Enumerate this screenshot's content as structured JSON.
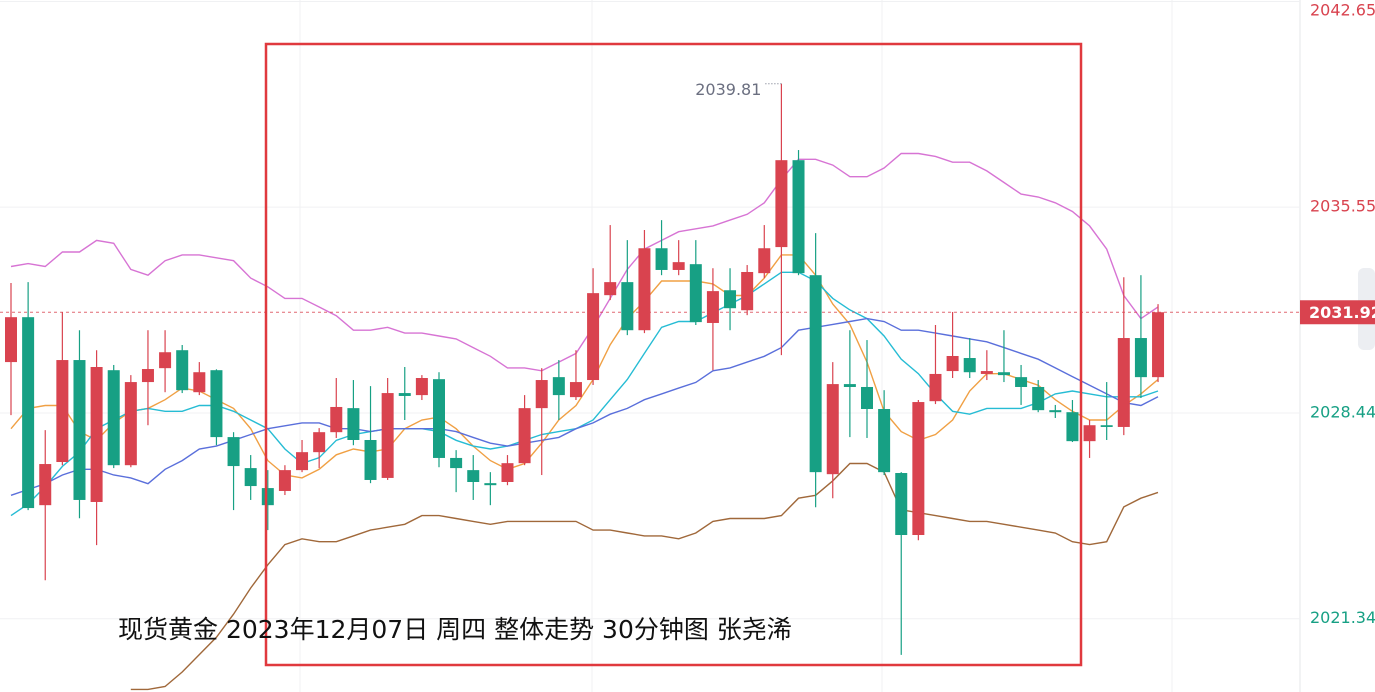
{
  "chart_data": {
    "type": "candlestick",
    "annotation": "现货黄金 2023年12月07日 周四 整体走势 30分钟图  张尧浠",
    "open": [
      2030.2,
      2031.75,
      2025.26,
      2026.75,
      2030.27,
      2025.37,
      2029.92,
      2026.64,
      2029.51,
      2029.99,
      2030.61,
      2029.16,
      2029.92,
      2027.61,
      2026.54,
      2025.85,
      2025.75,
      2026.47,
      2027.09,
      2027.78,
      2028.61,
      2027.51,
      2026.2,
      2029.13,
      2029.06,
      2029.61,
      2026.89,
      2026.47,
      2026.02,
      2026.06,
      2026.71,
      2028.61,
      2029.68,
      2028.99,
      2029.58,
      2032.51,
      2032.96,
      2031.3,
      2034.13,
      2033.38,
      2033.58,
      2031.55,
      2032.68,
      2031.99,
      2033.27,
      2034.17,
      2037.17,
      2033.2,
      2026.33,
      2029.44,
      2029.34,
      2028.58,
      2026.37,
      2024.23,
      2028.85,
      2029.89,
      2030.34,
      2029.79,
      2029.85,
      2029.68,
      2029.34,
      2028.54,
      2028.47,
      2027.47,
      2028.02,
      2027.96,
      2031.03,
      2029.68
    ],
    "high": [
      2032.93,
      2032.96,
      2027.85,
      2031.93,
      2031.3,
      2030.61,
      2030.1,
      2029.75,
      2031.3,
      2031.3,
      2030.79,
      2030.2,
      2029.95,
      2027.78,
      2026.99,
      2026.47,
      2026.64,
      2027.51,
      2027.92,
      2029.65,
      2029.58,
      2029.37,
      2029.65,
      2030.03,
      2029.75,
      2029.85,
      2027.16,
      2026.99,
      2026.4,
      2026.99,
      2029.06,
      2029.99,
      2030.27,
      2030.61,
      2033.44,
      2034.93,
      2034.41,
      2034.76,
      2035.1,
      2034.41,
      2034.41,
      2033.44,
      2033.44,
      2033.55,
      2034.93,
      2039.81,
      2037.52,
      2034.65,
      2030.2,
      2031.3,
      2030.96,
      2029.23,
      2026.4,
      2028.89,
      2031.48,
      2031.93,
      2031.03,
      2030.61,
      2031.3,
      2030.1,
      2029.58,
      2028.72,
      2028.89,
      2028.2,
      2029.51,
      2033.13,
      2033.2,
      2032.2
    ],
    "low": [
      2028.37,
      2025.09,
      2022.67,
      2026.64,
      2024.81,
      2023.88,
      2026.54,
      2026.57,
      2028.02,
      2029.16,
      2029.13,
      2029.06,
      2027.33,
      2025.09,
      2025.44,
      2024.4,
      2025.61,
      2026.4,
      2026.54,
      2027.58,
      2027.33,
      2026.02,
      2026.13,
      2028.2,
      2028.89,
      2026.57,
      2025.71,
      2025.44,
      2025.26,
      2025.95,
      2026.64,
      2026.3,
      2028.2,
      2028.89,
      2029.41,
      2032.34,
      2031.13,
      2031.2,
      2033.2,
      2033.2,
      2031.48,
      2029.92,
      2031.3,
      2031.82,
      2033.1,
      2030.44,
      2033.2,
      2025.19,
      2025.5,
      2027.61,
      2027.58,
      2026.3,
      2020.09,
      2024.05,
      2028.75,
      2029.65,
      2029.65,
      2029.58,
      2029.51,
      2028.72,
      2028.47,
      2028.27,
      2027.44,
      2026.89,
      2027.51,
      2027.68,
      2028.96,
      2029.51
    ],
    "close": [
      2031.75,
      2025.16,
      2026.68,
      2030.27,
      2025.44,
      2030.03,
      2026.64,
      2029.51,
      2029.96,
      2030.54,
      2029.23,
      2029.85,
      2027.61,
      2026.61,
      2025.92,
      2025.26,
      2026.47,
      2027.09,
      2027.78,
      2028.65,
      2027.51,
      2026.13,
      2029.13,
      2029.03,
      2029.65,
      2026.89,
      2026.54,
      2026.06,
      2025.95,
      2026.71,
      2028.61,
      2029.58,
      2029.06,
      2029.51,
      2032.58,
      2032.96,
      2031.3,
      2034.13,
      2033.38,
      2033.65,
      2031.58,
      2032.65,
      2032.06,
      2033.31,
      2034.13,
      2037.17,
      2033.27,
      2026.4,
      2029.44,
      2029.34,
      2028.58,
      2026.4,
      2024.23,
      2028.82,
      2029.79,
      2030.41,
      2029.85,
      2029.89,
      2029.75,
      2029.34,
      2028.54,
      2028.47,
      2027.47,
      2028.02,
      2027.96,
      2031.03,
      2029.68,
      2031.92
    ],
    "up_color": "#d9434f",
    "down_color": "#17a084",
    "series": [
      {
        "color": "#d774d4",
        "values": [
          2033.5,
          2033.6,
          2033.5,
          2034.0,
          2034.0,
          2034.4,
          2034.3,
          2033.4,
          2033.2,
          2033.7,
          2033.9,
          2033.9,
          2033.8,
          2033.7,
          2033.1,
          2032.8,
          2032.4,
          2032.4,
          2032.1,
          2031.8,
          2031.3,
          2031.3,
          2031.4,
          2031.2,
          2031.2,
          2031.1,
          2031.0,
          2030.7,
          2030.4,
          2030.0,
          2030.0,
          2029.9,
          2030.2,
          2030.5,
          2031.4,
          2032.4,
          2033.4,
          2034.1,
          2034.4,
          2034.7,
          2034.8,
          2034.9,
          2035.1,
          2035.3,
          2035.7,
          2036.5,
          2037.2,
          2037.2,
          2037.0,
          2036.6,
          2036.6,
          2036.9,
          2037.4,
          2037.4,
          2037.3,
          2037.1,
          2037.1,
          2036.8,
          2036.4,
          2036.0,
          2035.9,
          2035.7,
          2035.4,
          2034.9,
          2034.1,
          2032.5,
          2031.7,
          2032.1
        ]
      },
      {
        "color": "#a0683a",
        "values": [
          null,
          null,
          null,
          null,
          null,
          null,
          null,
          2018.9,
          2018.9,
          2019.0,
          2019.5,
          2020.1,
          2020.7,
          2021.5,
          2022.4,
          2023.2,
          2023.9,
          2024.1,
          2024.0,
          2024.0,
          2024.2,
          2024.4,
          2024.5,
          2024.6,
          2024.9,
          2024.9,
          2024.8,
          2024.7,
          2024.6,
          2024.7,
          2024.7,
          2024.7,
          2024.7,
          2024.7,
          2024.4,
          2024.4,
          2024.3,
          2024.2,
          2024.2,
          2024.1,
          2024.3,
          2024.7,
          2024.8,
          2024.8,
          2024.8,
          2024.9,
          2025.5,
          2025.6,
          2026.1,
          2026.7,
          2026.7,
          2026.4,
          2025.1,
          2025.0,
          2024.9,
          2024.8,
          2024.7,
          2024.7,
          2024.6,
          2024.5,
          2024.4,
          2024.3,
          2024.0,
          2023.9,
          2024.0,
          2025.2,
          2025.5,
          2025.7
        ]
      },
      {
        "color": "#f0a044",
        "values": [
          2027.9,
          2028.6,
          2028.7,
          2028.7,
          2027.8,
          2027.5,
          2028.1,
          2028.5,
          2028.6,
          2028.9,
          2029.3,
          2029.2,
          2028.9,
          2028.6,
          2027.9,
          2026.8,
          2026.3,
          2026.2,
          2026.5,
          2027.0,
          2027.2,
          2027.1,
          2027.2,
          2027.9,
          2028.2,
          2028.3,
          2027.9,
          2027.3,
          2026.8,
          2026.5,
          2026.7,
          2027.4,
          2028.2,
          2028.7,
          2029.6,
          2030.8,
          2031.7,
          2032.3,
          2033.0,
          2033.0,
          2033.0,
          2032.9,
          2032.5,
          2032.5,
          2033.1,
          2033.9,
          2033.9,
          2033.2,
          2032.2,
          2031.5,
          2030.2,
          2028.5,
          2027.8,
          2027.5,
          2027.7,
          2028.2,
          2029.2,
          2029.8,
          2029.8,
          2029.6,
          2029.4,
          2028.9,
          2028.5,
          2028.2,
          2028.2,
          2028.7,
          2029.1,
          2029.6
        ]
      },
      {
        "color": "#26bcd4",
        "values": [
          2024.9,
          2025.3,
          2025.9,
          2026.6,
          2027.1,
          2027.9,
          2028.2,
          2028.5,
          2028.6,
          2028.5,
          2028.5,
          2028.7,
          2028.7,
          2028.5,
          2028.2,
          2027.9,
          2027.2,
          2026.7,
          2026.9,
          2027.5,
          2027.7,
          2027.8,
          2027.9,
          2027.9,
          2027.9,
          2027.8,
          2027.5,
          2027.3,
          2027.2,
          2027.3,
          2027.5,
          2027.7,
          2027.8,
          2027.9,
          2028.2,
          2028.9,
          2029.6,
          2030.5,
          2031.4,
          2031.6,
          2031.6,
          2031.9,
          2032.2,
          2032.5,
          2032.9,
          2033.3,
          2033.3,
          2033.0,
          2032.4,
          2032.0,
          2031.7,
          2031.1,
          2030.3,
          2029.8,
          2029.1,
          2028.5,
          2028.4,
          2028.6,
          2028.6,
          2028.6,
          2028.8,
          2029.1,
          2029.2,
          2029.1,
          2029.0,
          2029.0,
          2029.0,
          2029.2
        ]
      },
      {
        "color": "#5a6fdb",
        "values": [
          2025.6,
          2025.8,
          2026.0,
          2026.3,
          2026.5,
          2026.5,
          2026.3,
          2026.2,
          2026.0,
          2026.5,
          2026.8,
          2027.2,
          2027.3,
          2027.5,
          2027.7,
          2027.9,
          2028.0,
          2028.1,
          2028.1,
          2027.9,
          2027.9,
          2027.8,
          2027.9,
          2027.9,
          2027.9,
          2027.9,
          2027.8,
          2027.6,
          2027.4,
          2027.3,
          2027.4,
          2027.5,
          2027.6,
          2027.9,
          2028.1,
          2028.4,
          2028.6,
          2028.9,
          2029.1,
          2029.3,
          2029.5,
          2029.9,
          2030.0,
          2030.2,
          2030.4,
          2030.7,
          2031.3,
          2031.4,
          2031.5,
          2031.6,
          2031.7,
          2031.6,
          2031.3,
          2031.3,
          2031.2,
          2031.1,
          2031.0,
          2030.9,
          2030.7,
          2030.5,
          2030.3,
          2030.0,
          2029.7,
          2029.4,
          2029.1,
          2028.8,
          2028.7,
          2029.0
        ]
      }
    ],
    "ylim": [
      2018.81,
      2042.7
    ],
    "yticks": [
      2021.34,
      2028.44,
      2035.55,
      2042.65
    ],
    "grid": true
  }
}
